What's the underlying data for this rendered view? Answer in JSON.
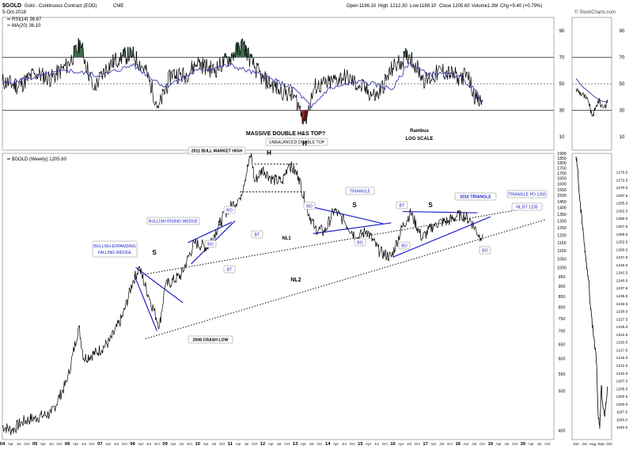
{
  "header": {
    "symbol": "$GOLD",
    "name": "Gold - Continuous Contract (EOD)",
    "exchange": "CME",
    "date": "5-Oct-2018",
    "open_label": "Open",
    "open": "1196.10",
    "high_label": "High",
    "high": "1212.30",
    "low_label": "Low",
    "low": "1188.10",
    "close_label": "Close",
    "close": "1205.60",
    "volume_label": "Volume",
    "volume": "1.3M",
    "chg_label": "Chg",
    "chg": "+9.40 (+0.79%)",
    "credit": "© StockCharts.com"
  },
  "colors": {
    "price": "#000000",
    "rsi": "#000000",
    "ma": "#3a3ab0",
    "annotation": "#2020c8",
    "overbought_fill": "#3f6b4f",
    "oversold_fill": "#8a2a2a"
  },
  "chart_data": [
    {
      "type": "line",
      "panel": "rsi",
      "legend": [
        {
          "id": "rsi",
          "label": "RSI(14) 36.67"
        },
        {
          "id": "ma",
          "label": "MA(20) 36.10"
        }
      ],
      "ylim": [
        0,
        100
      ],
      "y_ticks": [
        "90",
        "70",
        "50",
        "30",
        "10"
      ],
      "reference_levels": [
        70,
        50,
        30
      ],
      "notes": [
        "MASSIVE DOUBLE H&S TOP?",
        "Rambus",
        "LOG SCALE"
      ],
      "series": [
        {
          "id": "rsi",
          "x": [
            2004.0,
            2004.5,
            2005.0,
            2005.5,
            2006.0,
            2006.4,
            2006.8,
            2007.2,
            2007.6,
            2008.0,
            2008.4,
            2008.8,
            2009.2,
            2009.6,
            2010.0,
            2010.5,
            2011.0,
            2011.4,
            2011.7,
            2012.0,
            2012.5,
            2013.0,
            2013.3,
            2013.6,
            2014.0,
            2014.5,
            2015.0,
            2015.5,
            2016.0,
            2016.5,
            2017.0,
            2017.5,
            2018.0,
            2018.3,
            2018.6,
            2018.76
          ],
          "values": [
            52,
            48,
            58,
            54,
            64,
            80,
            46,
            62,
            70,
            72,
            60,
            32,
            58,
            56,
            66,
            60,
            70,
            80,
            64,
            54,
            46,
            40,
            22,
            48,
            50,
            56,
            48,
            40,
            62,
            72,
            52,
            60,
            55,
            56,
            36,
            36.67
          ]
        },
        {
          "id": "ma",
          "x": [
            2004.0,
            2005.0,
            2006.0,
            2007.0,
            2008.0,
            2009.0,
            2010.0,
            2011.0,
            2012.0,
            2013.0,
            2013.5,
            2014.0,
            2015.0,
            2016.0,
            2016.5,
            2017.0,
            2018.0,
            2018.5,
            2018.76
          ],
          "values": [
            50,
            55,
            60,
            56,
            64,
            48,
            60,
            64,
            56,
            46,
            32,
            46,
            52,
            46,
            66,
            58,
            56,
            46,
            36.1
          ]
        }
      ]
    },
    {
      "type": "line",
      "panel": "price",
      "scale": "log",
      "legend": [
        {
          "id": "gold",
          "label": "$GOLD (Weekly) 1205.60"
        }
      ],
      "ylim": [
        380,
        1900
      ],
      "y_ticks": [
        400,
        500,
        550,
        600,
        650,
        700,
        750,
        800,
        850,
        900,
        950,
        1000,
        1050,
        1100,
        1150,
        1200,
        1250,
        1300,
        1350,
        1400,
        1450,
        1500,
        1550,
        1600,
        1650,
        1700,
        1750,
        1800,
        1850,
        1900
      ],
      "x_year_labels": [
        "04",
        "05",
        "06",
        "07",
        "08",
        "09",
        "10",
        "11",
        "12",
        "13",
        "14",
        "15",
        "16",
        "17",
        "18",
        "19",
        "20"
      ],
      "x_month_labels": [
        "Apr",
        "Jul",
        "Oct"
      ],
      "series": [
        {
          "id": "gold",
          "x": [
            2004.0,
            2004.3,
            2004.6,
            2005.0,
            2005.5,
            2006.0,
            2006.35,
            2006.5,
            2006.9,
            2007.3,
            2007.7,
            2008.0,
            2008.2,
            2008.5,
            2008.83,
            2009.0,
            2009.5,
            2009.9,
            2010.3,
            2010.9,
            2011.3,
            2011.65,
            2011.75,
            2012.0,
            2012.3,
            2012.6,
            2012.8,
            2013.1,
            2013.35,
            2013.6,
            2013.9,
            2014.2,
            2014.5,
            2014.9,
            2015.2,
            2015.6,
            2015.95,
            2016.3,
            2016.55,
            2016.9,
            2017.3,
            2017.7,
            2017.95,
            2018.1,
            2018.4,
            2018.7,
            2018.76
          ],
          "values": [
            410,
            400,
            420,
            430,
            440,
            530,
            720,
            600,
            620,
            660,
            760,
            920,
            1000,
            850,
            720,
            900,
            960,
            1150,
            1120,
            1380,
            1480,
            1900,
            1620,
            1740,
            1640,
            1620,
            1790,
            1670,
            1400,
            1250,
            1220,
            1380,
            1300,
            1180,
            1230,
            1090,
            1060,
            1260,
            1360,
            1180,
            1280,
            1300,
            1330,
            1350,
            1300,
            1180,
            1205.6
          ]
        }
      ],
      "annotations": {
        "labels": [
          "MASSIVE DOUBLE H&S TOP?",
          "UNBALANCED DOUBLE TOP",
          "2011 BULL MARKET HIGH",
          "H",
          "H",
          "S",
          "S",
          "S",
          "S",
          "BULLISH RISING WEDGE",
          "BULLISH EXPANDING",
          "FALLING WEDGE",
          "2008 CRASH LOW",
          "TRIANGLE",
          "2016 TRIANGLE",
          "TRIANGLE PO 1265",
          "NL BT 1235",
          "NL1",
          "NL2",
          "BO",
          "BT"
        ],
        "bo_labels": [
          "BO",
          "BO",
          "BO",
          "BO",
          "BO",
          "BO"
        ],
        "bt_labels": [
          "BT",
          "BT",
          "BT"
        ]
      }
    },
    {
      "type": "line",
      "panel": "inset",
      "y_ticks": [
        1275.0,
        1272.5,
        1270.0,
        1267.5,
        1265.0,
        1262.5,
        1260.0,
        1257.5,
        1255.0,
        1252.5,
        1250.0,
        1247.5,
        1245.0,
        1242.5,
        1240.0,
        1237.5,
        1235.0,
        1232.5,
        1230.0,
        1227.5,
        1225.0,
        1222.5,
        1220.0,
        1217.5,
        1215.0,
        1212.5,
        1210.0,
        1207.5,
        1205.0,
        1202.5,
        1200.0,
        1197.5,
        1195.0,
        1192.5
      ],
      "rsi_ticks": [
        "90",
        "70",
        "50",
        "30",
        "10"
      ],
      "x_labels": [
        "Jun",
        "Jul",
        "Aug",
        "Sep",
        "Oct"
      ],
      "series": [
        {
          "id": "inset-price",
          "x": [
            0,
            0.05,
            0.1,
            0.2,
            0.3,
            0.4,
            0.45,
            0.5,
            0.55,
            0.6,
            0.65,
            0.7,
            0.75,
            0.8,
            0.85,
            0.9,
            1.0
          ],
          "values": [
            1280,
            1276,
            1268,
            1258,
            1248,
            1240,
            1232,
            1228,
            1222,
            1218,
            1213,
            1196,
            1192,
            1206,
            1199,
            1196,
            1205.6
          ]
        },
        {
          "id": "inset-rsi",
          "x": [
            0,
            0.2,
            0.4,
            0.5,
            0.6,
            0.7,
            0.8,
            0.9,
            1.0
          ],
          "values": [
            46,
            42,
            36,
            26,
            30,
            38,
            34,
            33,
            36
          ]
        },
        {
          "id": "inset-ma",
          "x": [
            0,
            0.2,
            0.4,
            0.6,
            0.8,
            1.0
          ],
          "values": [
            54,
            48,
            44,
            40,
            37,
            36
          ]
        }
      ]
    }
  ]
}
